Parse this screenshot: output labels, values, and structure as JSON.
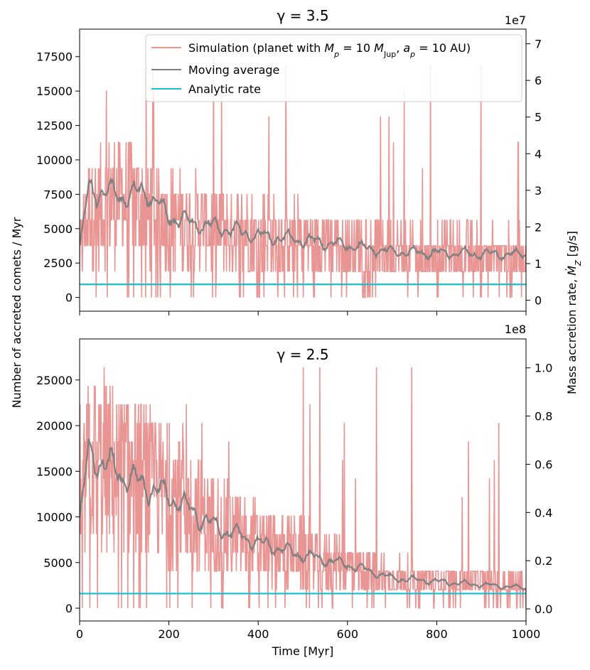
{
  "chart_data": [
    {
      "type": "line",
      "title": "γ = 3.5",
      "xlabel": "",
      "ylabel": "Number of accreted comets / Myr",
      "y2label": "Mass accretion rate, Ṁ_Z [g/s]",
      "y2_offset": "1e7",
      "xlim": [
        0,
        1000
      ],
      "ylim": [
        -1000,
        19500
      ],
      "y2lim": [
        -0.3,
        7.4
      ],
      "xticks": [
        0,
        200,
        400,
        600,
        800,
        1000
      ],
      "yticks": [
        0,
        2500,
        5000,
        7500,
        10000,
        12500,
        15000,
        17500
      ],
      "y2ticks": [
        0,
        1,
        2,
        3,
        4,
        5,
        6,
        7
      ],
      "show_xticklabels": false,
      "legend": {
        "placement": "top-right",
        "entries": [
          "Simulation (planet with M_p = 10 M_Jup, a_p = 10 AU)",
          "Moving average",
          "Analytic rate"
        ]
      },
      "series": [
        {
          "name": "Simulation (planet with M_p = 10 M_Jup, a_p = 10 AU)",
          "color": "#e89593",
          "quantum": 1880,
          "trend": [
            [
              0,
              3500
            ],
            [
              20,
              6500
            ],
            [
              100,
              7200
            ],
            [
              200,
              5700
            ],
            [
              400,
              4500
            ],
            [
              600,
              3800
            ],
            [
              700,
              3300
            ],
            [
              1000,
              2900
            ]
          ],
          "spike_max": 18800
        },
        {
          "name": "Moving average",
          "color": "#808080",
          "trend": [
            [
              0,
              3600
            ],
            [
              20,
              7800
            ],
            [
              100,
              7400
            ],
            [
              150,
              7800
            ],
            [
              200,
              5800
            ],
            [
              400,
              4500
            ],
            [
              600,
              3800
            ],
            [
              700,
              3300
            ],
            [
              1000,
              3100
            ]
          ]
        },
        {
          "name": "Analytic rate",
          "color": "#17becf",
          "x": [
            0,
            1000
          ],
          "y": [
            950,
            950
          ]
        }
      ]
    },
    {
      "type": "line",
      "title": "γ = 2.5",
      "xlabel": "Time [Myr]",
      "ylabel": "Number of accreted comets / Myr",
      "y2label": "Mass accretion rate, Ṁ_Z [g/s]",
      "y2_offset": "1e8",
      "xlim": [
        0,
        1000
      ],
      "ylim": [
        -1400,
        29500
      ],
      "y2lim": [
        -0.05,
        1.12
      ],
      "xticks": [
        0,
        200,
        400,
        600,
        800,
        1000
      ],
      "yticks": [
        0,
        5000,
        10000,
        15000,
        20000,
        25000
      ],
      "y2ticks": [
        0.0,
        0.2,
        0.4,
        0.6,
        0.8,
        1.0
      ],
      "show_xticklabels": true,
      "series": [
        {
          "name": "Simulation (planet with M_p = 10 M_Jup, a_p = 10 AU)",
          "color": "#e89593",
          "quantum": 2030,
          "trend": [
            [
              0,
              9000
            ],
            [
              20,
              16000
            ],
            [
              100,
              14500
            ],
            [
              200,
              12500
            ],
            [
              300,
              9000
            ],
            [
              400,
              7000
            ],
            [
              500,
              5800
            ],
            [
              600,
              4800
            ],
            [
              700,
              3300
            ],
            [
              1000,
              2300
            ]
          ],
          "spike_max": 28200
        },
        {
          "name": "Moving average",
          "color": "#808080",
          "trend": [
            [
              0,
              9500
            ],
            [
              20,
              17000
            ],
            [
              100,
              14500
            ],
            [
              200,
              12300
            ],
            [
              300,
              9000
            ],
            [
              400,
              7200
            ],
            [
              500,
              5800
            ],
            [
              600,
              4800
            ],
            [
              700,
              3300
            ],
            [
              1000,
              2200
            ]
          ]
        },
        {
          "name": "Analytic rate",
          "color": "#17becf",
          "x": [
            0,
            1000
          ],
          "y": [
            1600,
            1600
          ]
        }
      ]
    }
  ]
}
